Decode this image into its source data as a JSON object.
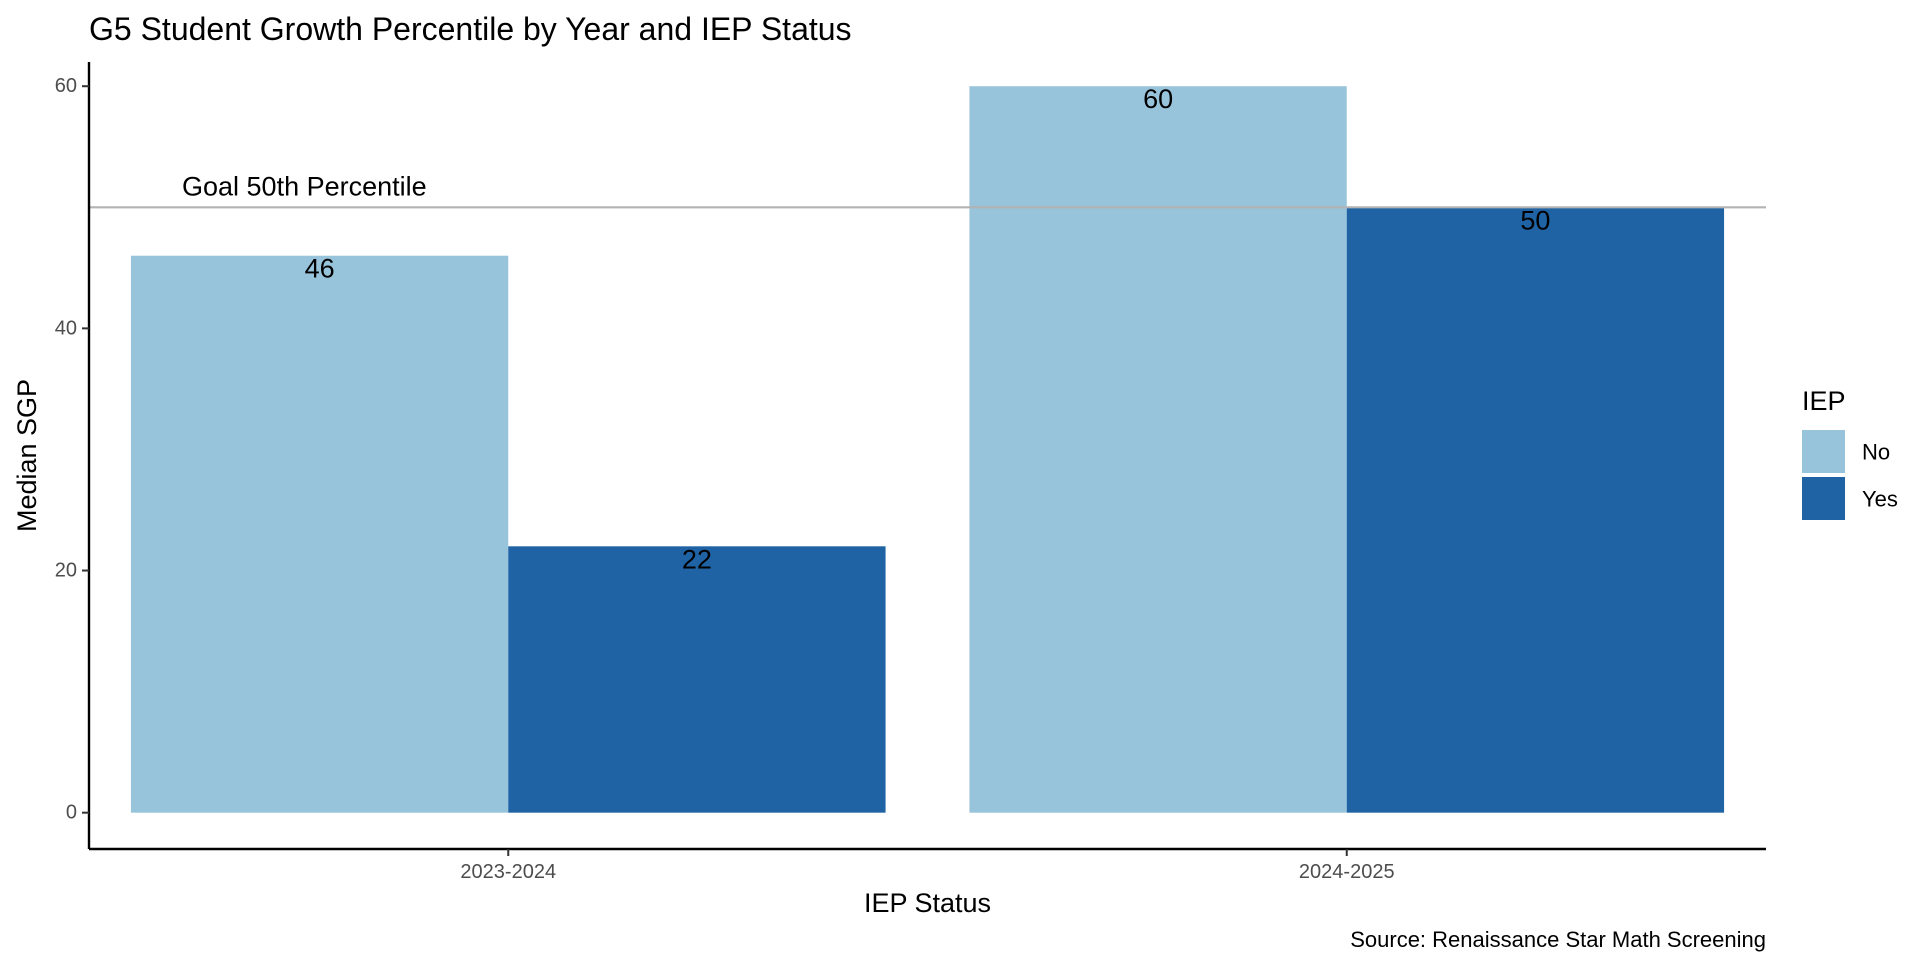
{
  "chart_data": {
    "type": "bar",
    "title": "G5 Student Growth Percentile by Year and IEP Status",
    "xlabel": "IEP Status",
    "ylabel": "Median SGP",
    "caption": "Source: Renaissance Star Math Screening",
    "categories": [
      "2023-2024",
      "2024-2025"
    ],
    "series": [
      {
        "name": "No",
        "values": [
          46,
          60
        ],
        "color": "#97c3db"
      },
      {
        "name": "Yes",
        "values": [
          22,
          50
        ],
        "color": "#1f63a5"
      }
    ],
    "ylim": [
      -3,
      62
    ],
    "yticks": [
      0,
      20,
      40,
      60
    ],
    "reference_line": {
      "value": 50,
      "label": "Goal 50th Percentile",
      "color": "#b3b3b3"
    },
    "legend": {
      "title": "IEP",
      "position": "right"
    },
    "grid": false
  }
}
